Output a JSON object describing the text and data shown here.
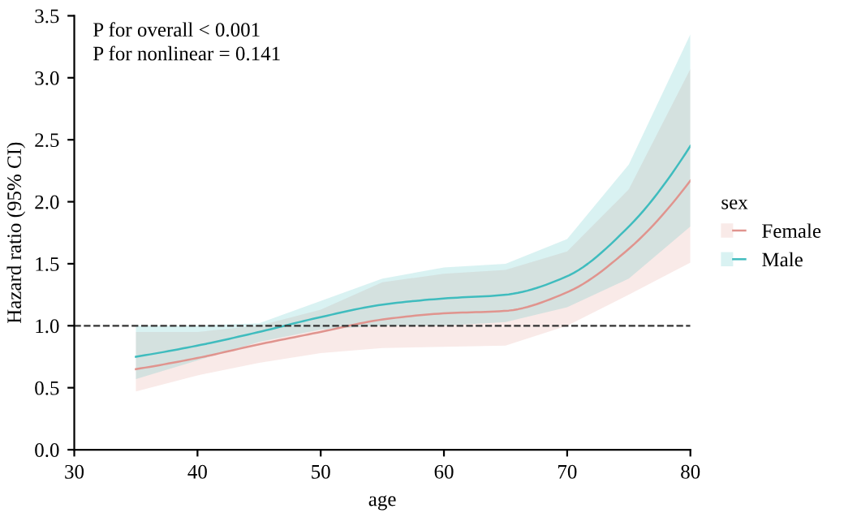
{
  "chart_data": {
    "type": "line",
    "xlabel": "age",
    "ylabel": "Hazard ratio (95% CI)",
    "legend_title": "sex",
    "annotations": [
      "P for overall < 0.001",
      "P for nonlinear = 0.141"
    ],
    "x": [
      35,
      40,
      45,
      50,
      55,
      60,
      65,
      70,
      75,
      80
    ],
    "series": [
      {
        "name": "Female",
        "color": "#e0948e",
        "values": [
          0.65,
          0.74,
          0.85,
          0.95,
          1.05,
          1.1,
          1.12,
          1.27,
          1.62,
          2.17
        ],
        "lower": [
          0.47,
          0.6,
          0.7,
          0.78,
          0.82,
          0.83,
          0.84,
          1.0,
          1.25,
          1.51
        ],
        "upper": [
          0.95,
          0.95,
          1.0,
          1.13,
          1.35,
          1.42,
          1.45,
          1.6,
          2.1,
          3.07
        ]
      },
      {
        "name": "Male",
        "color": "#3fbcbe",
        "values": [
          0.75,
          0.84,
          0.95,
          1.07,
          1.17,
          1.22,
          1.25,
          1.4,
          1.8,
          2.45
        ],
        "lower": [
          0.57,
          0.72,
          0.87,
          0.97,
          1.0,
          1.0,
          1.03,
          1.15,
          1.38,
          1.8
        ],
        "upper": [
          1.0,
          1.0,
          1.02,
          1.2,
          1.38,
          1.47,
          1.5,
          1.7,
          2.3,
          3.35
        ]
      }
    ],
    "ref_lines": [
      {
        "axis": "y",
        "value": 1.0,
        "label": null,
        "color": "#333333",
        "line_style": "dashed"
      }
    ],
    "xlim": [
      30,
      80
    ],
    "xticks": [
      30,
      40,
      50,
      60,
      70,
      80
    ],
    "ylim": [
      0,
      3.5
    ],
    "yticks": [
      {
        "value": 0,
        "label": "0.0"
      },
      0.5,
      {
        "value": 1,
        "label": "1.0"
      },
      1.5,
      {
        "value": 2,
        "label": "2.0"
      },
      2.5,
      {
        "value": 3,
        "label": "3.0"
      },
      3.5
    ],
    "grid": false,
    "legend": "right",
    "marker": "none",
    "line_style": "solid"
  }
}
